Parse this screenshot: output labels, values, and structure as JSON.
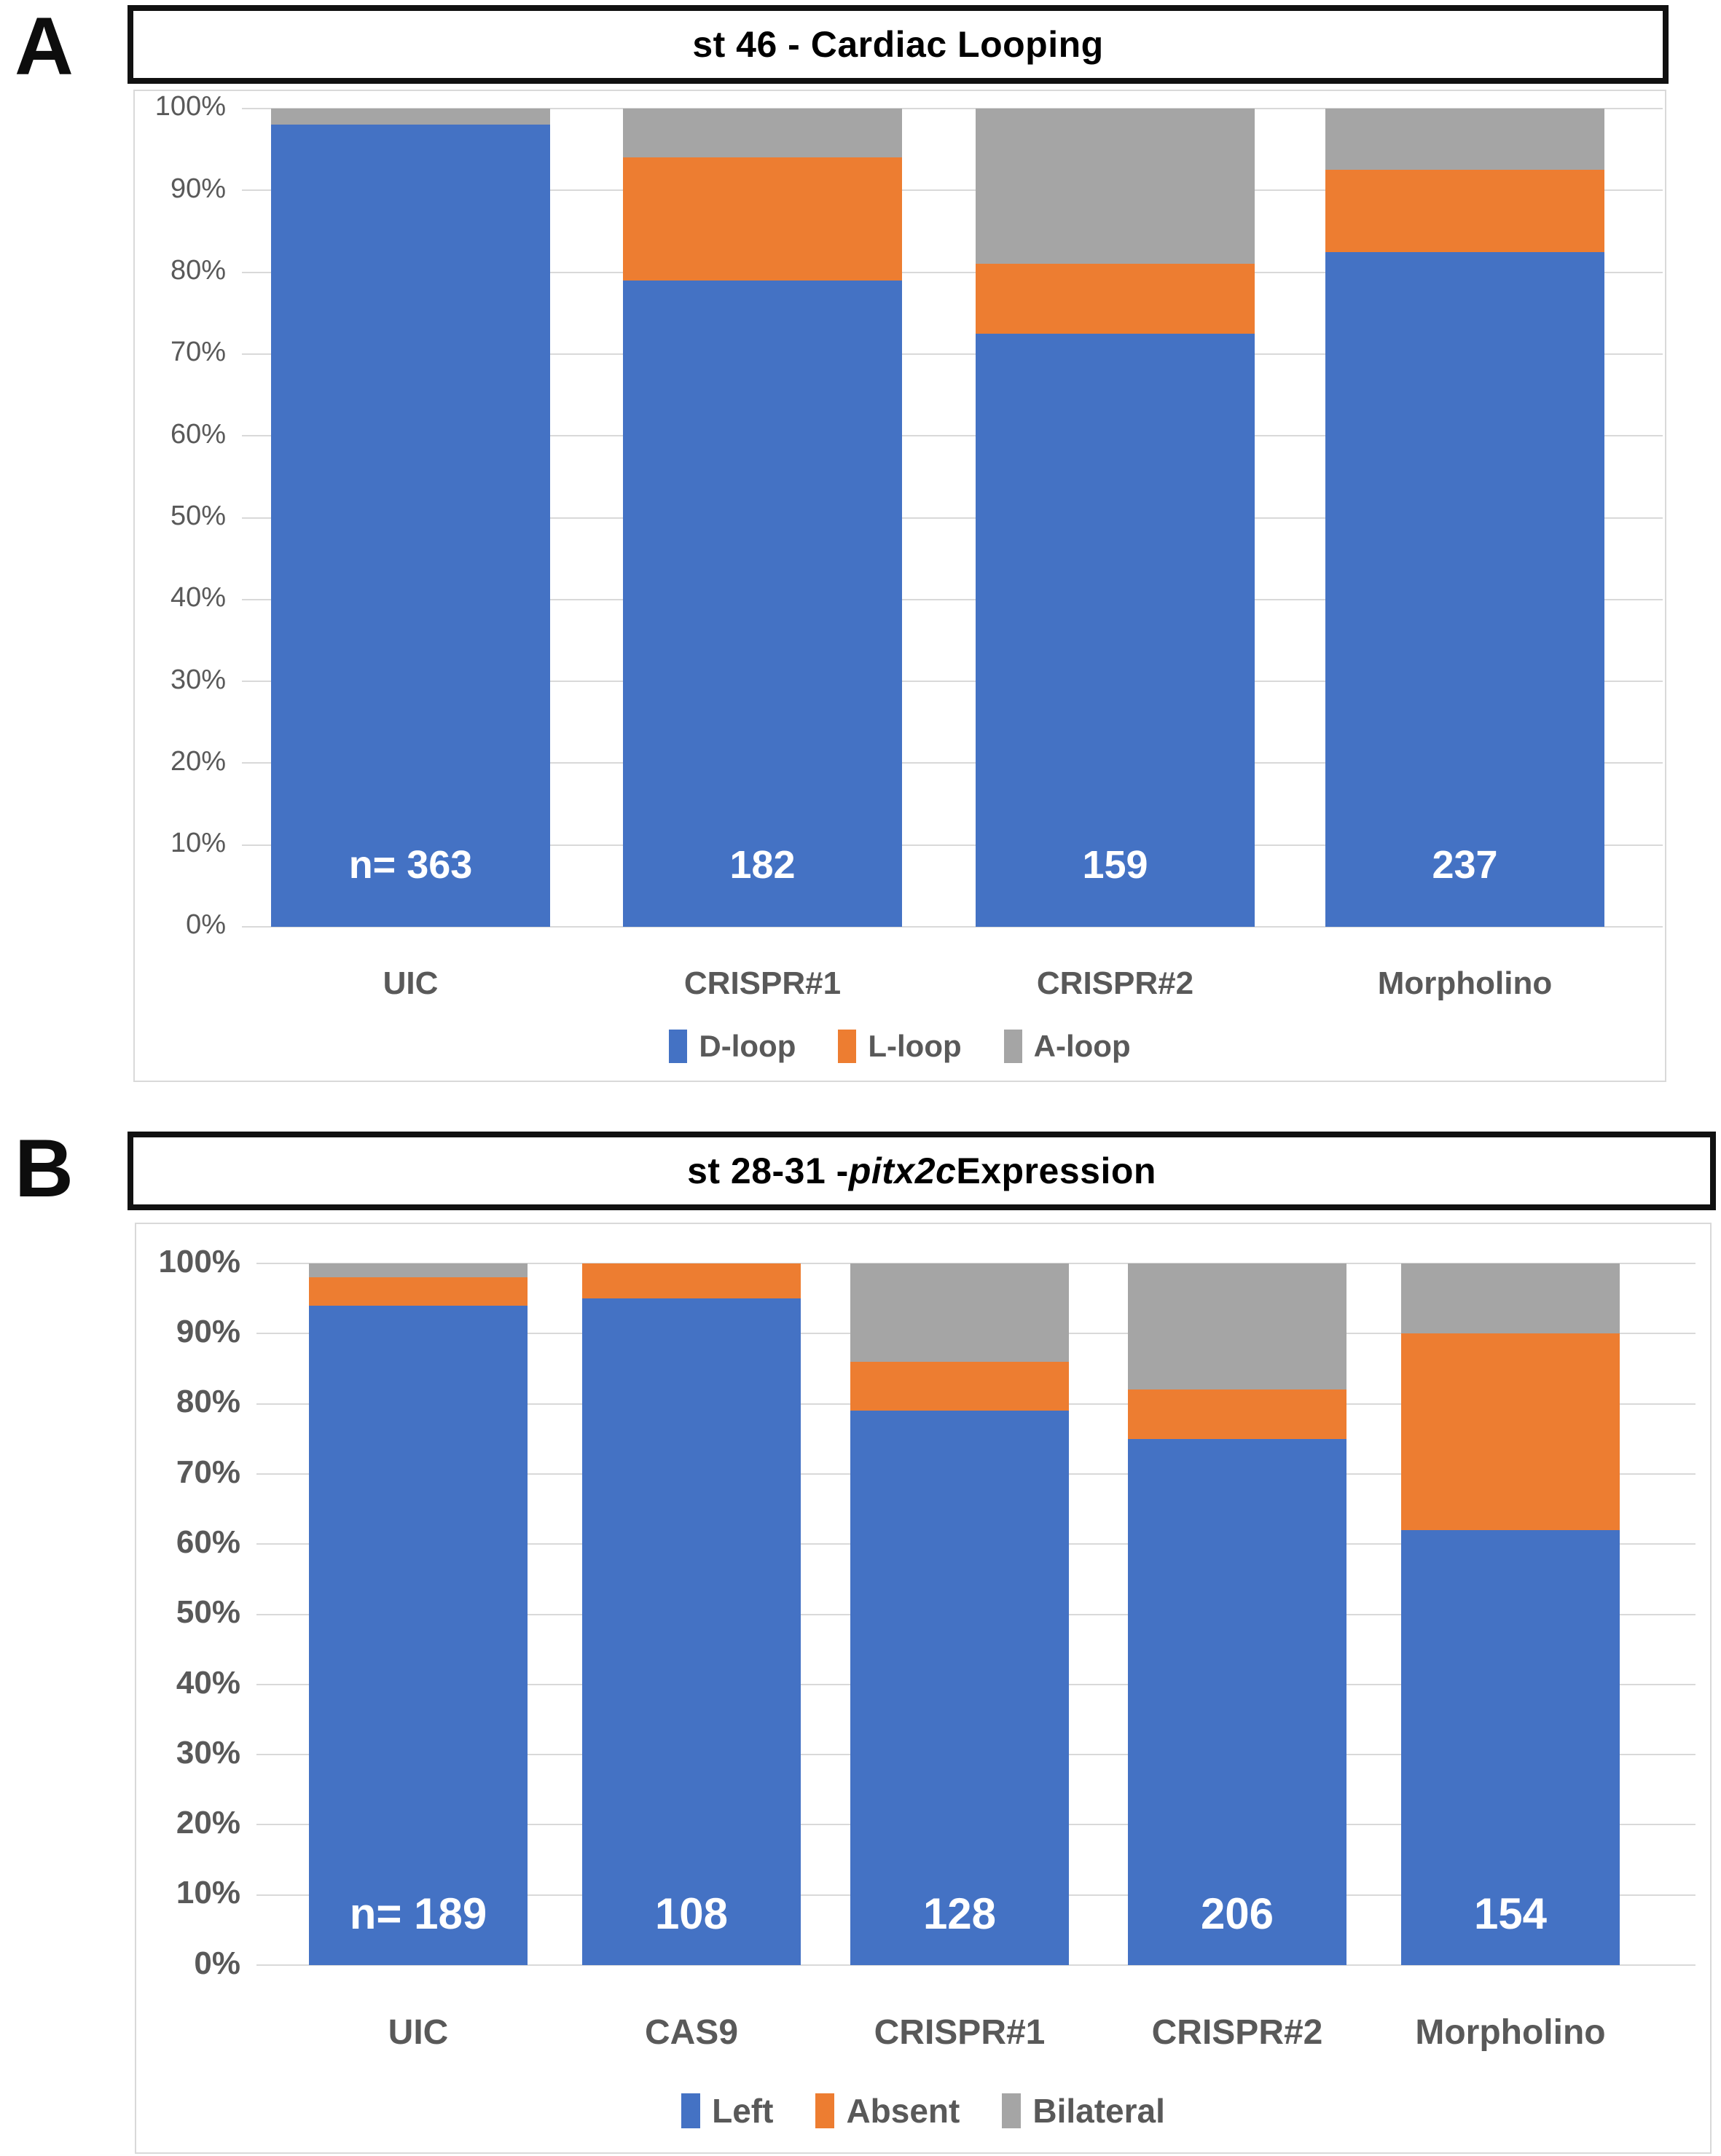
{
  "page": {
    "background": "#ffffff"
  },
  "colors": {
    "blue": "#4472C4",
    "orange": "#ED7D31",
    "gray": "#A5A5A5",
    "grid": "#D9D9D9",
    "axis_text": "#595959",
    "title_text": "#000000",
    "n_label_text": "#FFFFFF"
  },
  "chart_data": [
    {
      "type": "bar",
      "stacked": true,
      "stacked_100pct": true,
      "panel": "A",
      "title": {
        "prefix": "st 46 - Cardiac Looping",
        "italic": "",
        "suffix": ""
      },
      "xlabel": "",
      "ylabel": "",
      "ylim": [
        0,
        100
      ],
      "grid": true,
      "legend_position": "bottom",
      "y_ticks": [
        "0%",
        "10%",
        "20%",
        "30%",
        "40%",
        "50%",
        "60%",
        "70%",
        "80%",
        "90%",
        "100%"
      ],
      "categories": [
        "UIC",
        "CRISPR#1",
        "CRISPR#2",
        "Morpholino"
      ],
      "n_labels": [
        "n= 363",
        "182",
        "159",
        "237"
      ],
      "series": [
        {
          "name": "D-loop",
          "color_key": "blue",
          "values": [
            98,
            79,
            72.5,
            82.5
          ]
        },
        {
          "name": "L-loop",
          "color_key": "orange",
          "values": [
            0,
            15,
            8.5,
            10
          ]
        },
        {
          "name": "A-loop",
          "color_key": "gray",
          "values": [
            2,
            6,
            19,
            7.5
          ]
        }
      ]
    },
    {
      "type": "bar",
      "stacked": true,
      "stacked_100pct": true,
      "panel": "B",
      "title": {
        "prefix": "st 28-31 - ",
        "italic": "pitx2c",
        "suffix": " Expression"
      },
      "xlabel": "",
      "ylabel": "",
      "ylim": [
        0,
        100
      ],
      "grid": true,
      "legend_position": "bottom",
      "y_ticks": [
        "0%",
        "10%",
        "20%",
        "30%",
        "40%",
        "50%",
        "60%",
        "70%",
        "80%",
        "90%",
        "100%"
      ],
      "categories": [
        "UIC",
        "CAS9",
        "CRISPR#1",
        "CRISPR#2",
        "Morpholino"
      ],
      "n_labels": [
        "n= 189",
        "108",
        "128",
        "206",
        "154"
      ],
      "series": [
        {
          "name": "Left",
          "color_key": "blue",
          "values": [
            94,
            95,
            79,
            75,
            62
          ]
        },
        {
          "name": "Absent",
          "color_key": "orange",
          "values": [
            4,
            5,
            7,
            7,
            28
          ]
        },
        {
          "name": "Bilateral",
          "color_key": "gray",
          "values": [
            2,
            0,
            14,
            18,
            10
          ]
        }
      ]
    }
  ]
}
